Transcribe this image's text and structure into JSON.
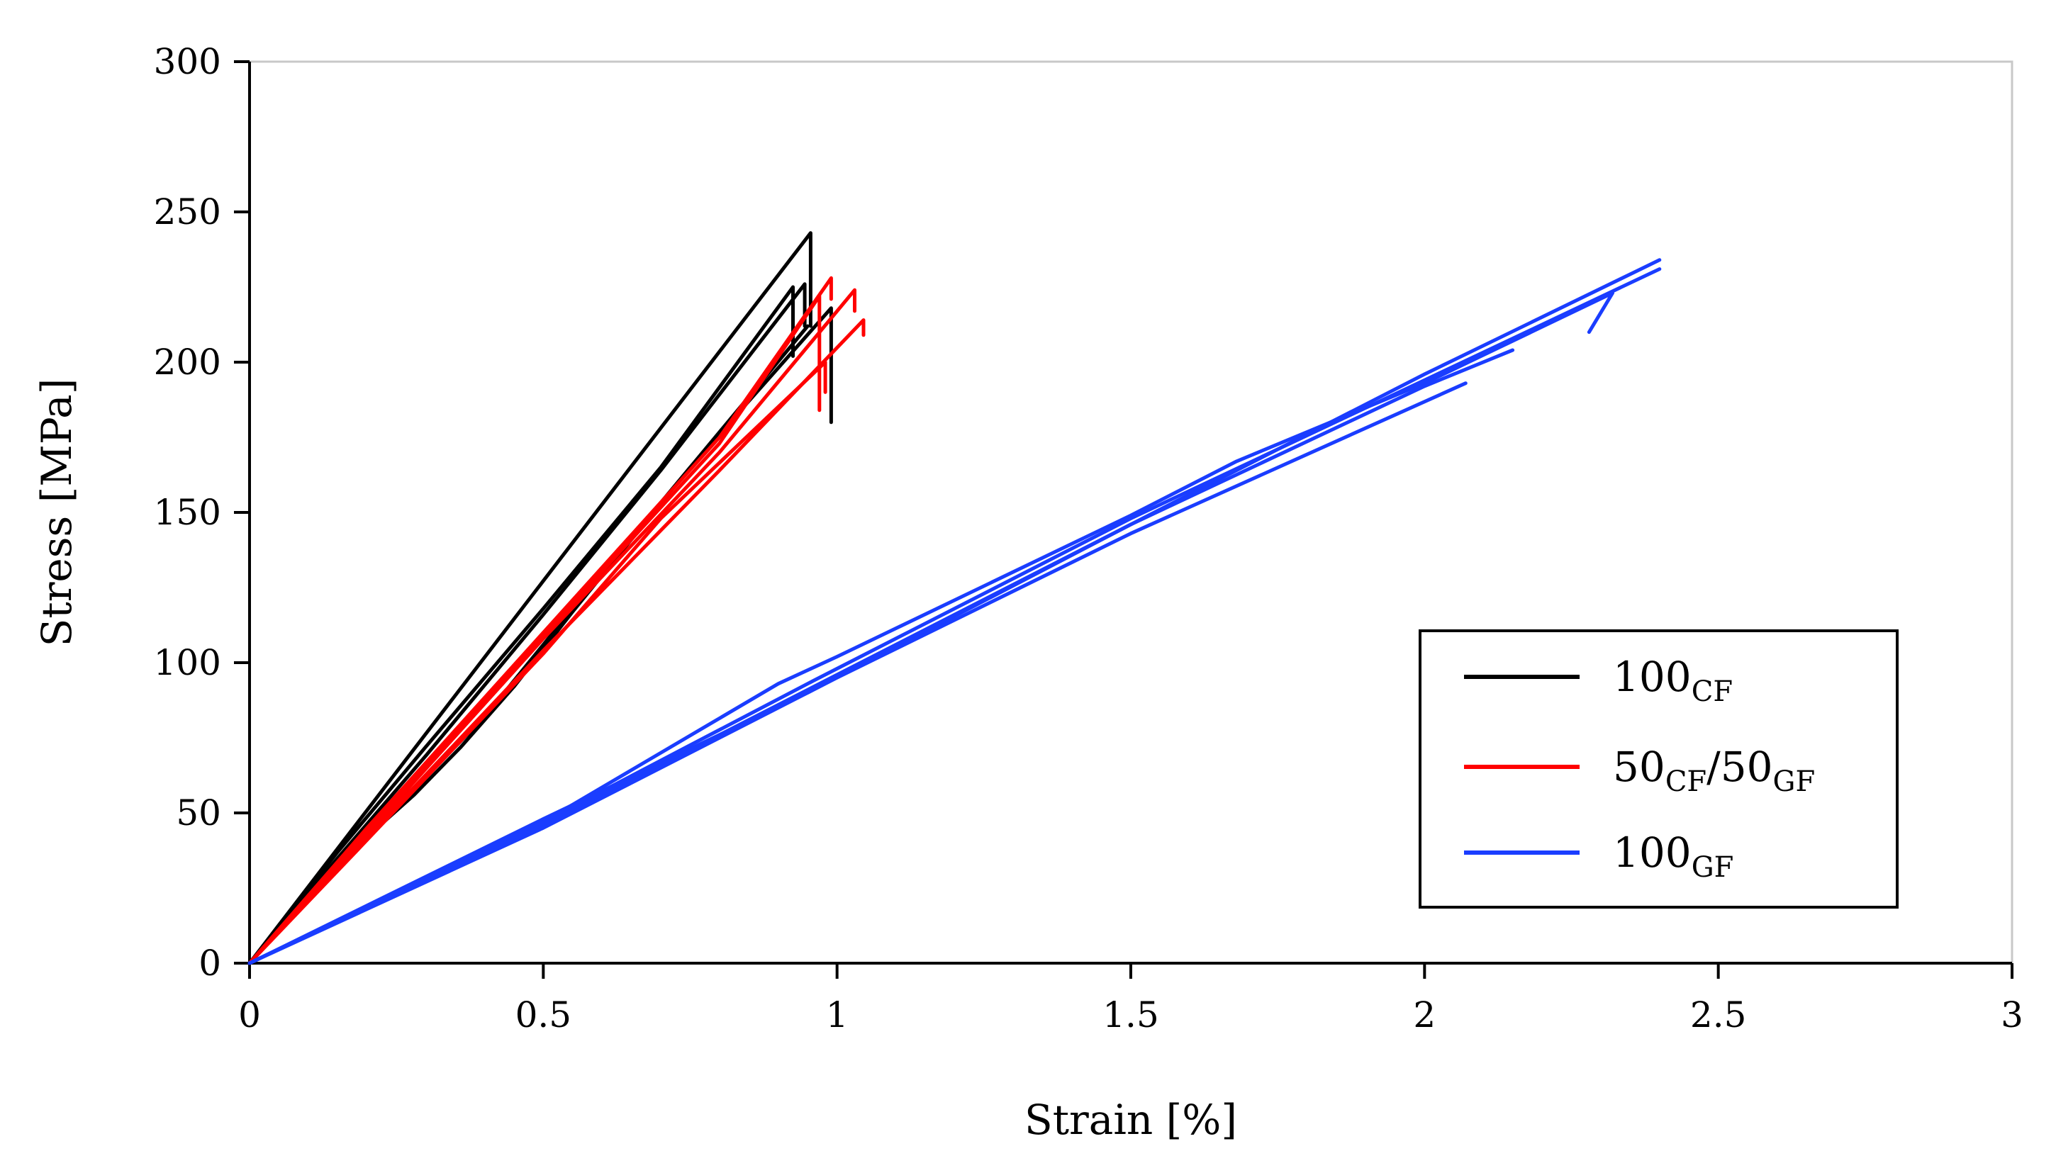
{
  "chart_data": {
    "type": "line",
    "title": "",
    "xlabel": "Strain [%]",
    "ylabel": "Stress [MPa]",
    "xlim": [
      0,
      3
    ],
    "ylim": [
      0,
      300
    ],
    "xticks": [
      0,
      0.5,
      1,
      1.5,
      2,
      2.5,
      3
    ],
    "xtick_labels": [
      "0",
      "0.5",
      "1",
      "1.5",
      "2",
      "2.5",
      "3"
    ],
    "yticks": [
      0,
      50,
      100,
      150,
      200,
      250,
      300
    ],
    "ytick_labels": [
      "0",
      "50",
      "100",
      "150",
      "200",
      "250",
      "300"
    ],
    "grid": false,
    "legend_position": "right",
    "series": [
      {
        "name": "100CF",
        "label_main": "100",
        "label_sub": "CF",
        "color": "#000000",
        "curves": [
          [
            [
              0,
              0
            ],
            [
              0.955,
              243
            ],
            [
              0.955,
              212
            ]
          ],
          [
            [
              0,
              0
            ],
            [
              0.15,
              37
            ],
            [
              0.3,
              72
            ],
            [
              0.5,
              118
            ],
            [
              0.7,
              165
            ],
            [
              0.925,
              225
            ],
            [
              0.925,
              202
            ]
          ],
          [
            [
              0,
              0
            ],
            [
              0.15,
              35
            ],
            [
              0.3,
              69
            ],
            [
              0.5,
              116
            ],
            [
              0.7,
              164
            ],
            [
              0.945,
              226
            ],
            [
              0.945,
              212
            ]
          ],
          [
            [
              0,
              0
            ],
            [
              0.1,
              23
            ],
            [
              0.2,
              44
            ],
            [
              0.3,
              62
            ],
            [
              0.4,
              82
            ],
            [
              0.55,
              118
            ],
            [
              0.75,
              165
            ],
            [
              0.99,
              218
            ],
            [
              0.99,
              180
            ]
          ],
          [
            [
              0,
              0
            ],
            [
              0.1,
              22
            ],
            [
              0.2,
              42
            ],
            [
              0.28,
              56
            ],
            [
              0.36,
              72
            ],
            [
              0.45,
              92
            ],
            [
              0.55,
              117
            ],
            [
              0.75,
              165
            ],
            [
              0.95,
              212
            ]
          ]
        ]
      },
      {
        "name": "50CF/50GF",
        "label_main_1": "50",
        "label_sub_1": "CF",
        "label_mid": "/50",
        "label_sub_2": "GF",
        "color": "#ff0000",
        "curves": [
          [
            [
              0,
              0
            ],
            [
              0.2,
              45
            ],
            [
              0.5,
              110
            ],
            [
              0.8,
              175
            ],
            [
              0.99,
              228
            ],
            [
              0.99,
              221
            ]
          ],
          [
            [
              0,
              0
            ],
            [
              0.2,
              44
            ],
            [
              0.5,
              109
            ],
            [
              0.8,
              173
            ],
            [
              0.97,
              222
            ],
            [
              0.97,
              184
            ]
          ],
          [
            [
              0,
              0
            ],
            [
              0.2,
              43
            ],
            [
              0.5,
              108
            ],
            [
              0.8,
              170
            ],
            [
              1.03,
              224
            ],
            [
              1.03,
              217
            ]
          ],
          [
            [
              0,
              0
            ],
            [
              0.2,
              42
            ],
            [
              0.5,
              104
            ],
            [
              0.8,
              164
            ],
            [
              1.045,
              214
            ],
            [
              1.045,
              209
            ]
          ],
          [
            [
              0,
              0
            ],
            [
              0.2,
              41
            ],
            [
              0.5,
              103
            ],
            [
              0.7,
              148
            ],
            [
              0.98,
              200
            ],
            [
              0.98,
              190
            ]
          ]
        ]
      },
      {
        "name": "100GF",
        "label_main": "100",
        "label_sub": "GF",
        "color": "#1a3dff",
        "curves": [
          [
            [
              0,
              0
            ],
            [
              0.5,
              48
            ],
            [
              0.95,
              90
            ],
            [
              1.5,
              146
            ],
            [
              2.0,
              196
            ],
            [
              2.4,
              234
            ]
          ],
          [
            [
              0,
              0
            ],
            [
              0.5,
              47
            ],
            [
              0.9,
              93
            ],
            [
              1.0,
              102
            ],
            [
              1.5,
              149
            ],
            [
              1.68,
              167
            ],
            [
              2.0,
              193
            ],
            [
              2.32,
              223
            ],
            [
              2.28,
              210
            ]
          ],
          [
            [
              0,
              0
            ],
            [
              0.5,
              47
            ],
            [
              0.96,
              94
            ],
            [
              1.5,
              148
            ],
            [
              2.0,
              194
            ],
            [
              2.4,
              231
            ]
          ],
          [
            [
              0,
              0
            ],
            [
              0.5,
              46
            ],
            [
              1.0,
              96
            ],
            [
              1.5,
              146
            ],
            [
              2.0,
              192
            ],
            [
              2.15,
              204
            ]
          ],
          [
            [
              0,
              0
            ],
            [
              0.5,
              45
            ],
            [
              1.0,
              95
            ],
            [
              1.5,
              143
            ],
            [
              2.07,
              193
            ]
          ]
        ]
      }
    ]
  }
}
